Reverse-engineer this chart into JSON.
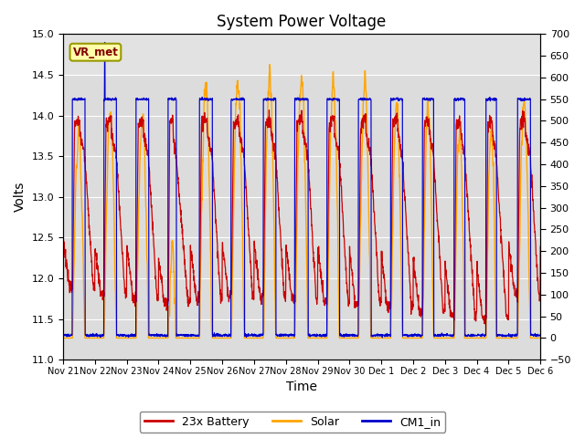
{
  "title": "System Power Voltage",
  "xlabel": "Time",
  "ylabel": "Volts",
  "ylim_left": [
    11.0,
    15.0
  ],
  "ylim_right": [
    -50,
    700
  ],
  "yticks_left_step": 0.5,
  "yticks_right_step": 50,
  "bg_color": "#dcdcdc",
  "battery_color": "#cc0000",
  "solar_color": "#ffa500",
  "cm1_color": "#0000cc",
  "legend_items": [
    "23x Battery",
    "Solar",
    "CM1_in"
  ],
  "vr_met_label": "VR_met",
  "vr_met_box_facecolor": "#ffffaa",
  "vr_met_box_edgecolor": "#999900",
  "vr_met_text_color": "#800000",
  "xtick_labels": [
    "Nov 21",
    "Nov 22",
    "Nov 23",
    "Nov 24",
    "Nov 25",
    "Nov 26",
    "Nov 27",
    "Nov 28",
    "Nov 29",
    "Nov 30",
    "Dec 1",
    "Dec 2",
    "Dec 3",
    "Dec 4",
    "Dec 5",
    "Dec 6"
  ],
  "title_fontsize": 12,
  "axis_label_fontsize": 10,
  "tick_fontsize": 8,
  "legend_fontsize": 9,
  "right_axis_dotted": true,
  "day_solar_peaks": [
    470,
    520,
    500,
    210,
    580,
    590,
    600,
    595,
    595,
    590,
    540,
    540,
    490,
    480,
    540
  ],
  "day_night_battery": [
    11.9,
    11.8,
    11.75,
    11.7,
    11.75,
    11.8,
    11.78,
    11.75,
    11.72,
    11.68,
    11.65,
    11.6,
    11.55,
    11.5,
    11.8
  ],
  "day_charge_start": [
    0.3,
    0.29,
    0.3,
    0.31,
    0.29,
    0.29,
    0.3,
    0.29,
    0.3,
    0.29,
    0.3,
    0.3,
    0.3,
    0.3,
    0.29
  ],
  "day_charge_end": [
    0.68,
    0.67,
    0.68,
    0.55,
    0.68,
    0.69,
    0.68,
    0.69,
    0.68,
    0.67,
    0.66,
    0.64,
    0.62,
    0.61,
    0.68
  ],
  "n_days": 15,
  "pts_per_day": 144
}
